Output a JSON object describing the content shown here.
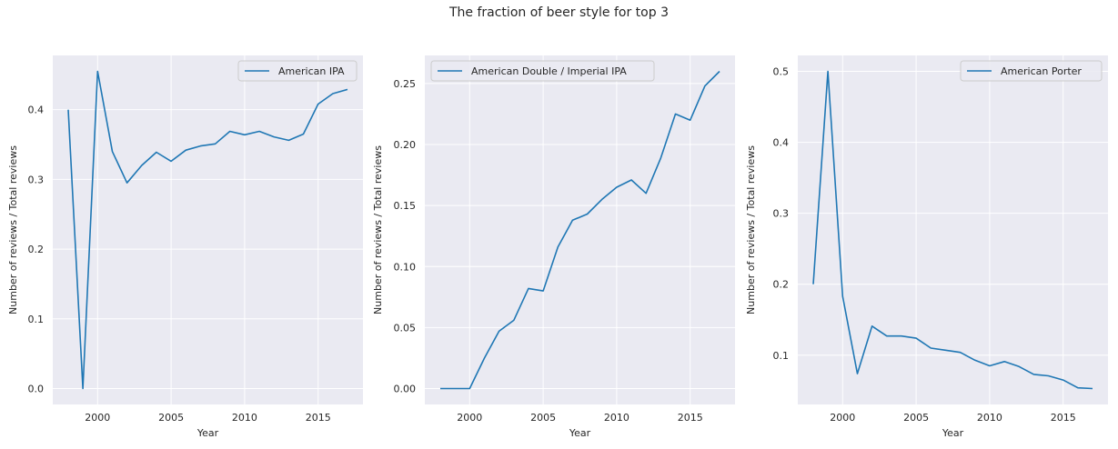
{
  "figure": {
    "title": "The fraction of beer style for top 3"
  },
  "chart_data": [
    {
      "type": "line",
      "x": [
        1998,
        1999,
        2000,
        2001,
        2002,
        2003,
        2004,
        2005,
        2006,
        2007,
        2008,
        2009,
        2010,
        2011,
        2012,
        2013,
        2014,
        2015,
        2016,
        2017
      ],
      "series": [
        {
          "name": "American IPA",
          "color": "#1f77b4",
          "values": [
            0.4,
            0.0,
            0.455,
            0.34,
            0.295,
            0.32,
            0.339,
            0.326,
            0.342,
            0.348,
            0.351,
            0.369,
            0.364,
            0.369,
            0.361,
            0.356,
            0.365,
            0.408,
            0.423,
            0.429
          ]
        }
      ],
      "xlabel": "Year",
      "ylabel": "Number of reviews / Total reviews",
      "xlim": [
        1996.95,
        2018.05
      ],
      "ylim": [
        -0.0228,
        0.4778
      ],
      "xticks": [
        2000,
        2005,
        2010,
        2015
      ],
      "yticks": [
        0.0,
        0.1,
        0.2,
        0.3,
        0.4
      ],
      "ytick_labels": [
        "0.0",
        "0.1",
        "0.2",
        "0.3",
        "0.4"
      ],
      "grid": true,
      "legend": "top-right"
    },
    {
      "type": "line",
      "x": [
        1998,
        1999,
        2000,
        2001,
        2002,
        2003,
        2004,
        2005,
        2006,
        2007,
        2008,
        2009,
        2010,
        2011,
        2012,
        2013,
        2014,
        2015,
        2016,
        2017
      ],
      "series": [
        {
          "name": "American Double / Imperial IPA",
          "color": "#1f77b4",
          "values": [
            0.0,
            0.0,
            0.0,
            0.025,
            0.047,
            0.056,
            0.082,
            0.08,
            0.116,
            0.138,
            0.143,
            0.155,
            0.165,
            0.171,
            0.16,
            0.189,
            0.225,
            0.22,
            0.248,
            0.26
          ]
        }
      ],
      "xlabel": "Year",
      "ylabel": "Number of reviews / Total reviews",
      "xlim": [
        1996.95,
        2018.05
      ],
      "ylim": [
        -0.013,
        0.273
      ],
      "xticks": [
        2000,
        2005,
        2010,
        2015
      ],
      "yticks": [
        0.0,
        0.05,
        0.1,
        0.15,
        0.2,
        0.25
      ],
      "ytick_labels": [
        "0.00",
        "0.05",
        "0.10",
        "0.15",
        "0.20",
        "0.25"
      ],
      "grid": true,
      "legend": "top-left"
    },
    {
      "type": "line",
      "x": [
        1998,
        1999,
        2000,
        2001,
        2002,
        2003,
        2004,
        2005,
        2006,
        2007,
        2008,
        2009,
        2010,
        2011,
        2012,
        2013,
        2014,
        2015,
        2016,
        2017
      ],
      "series": [
        {
          "name": "American Porter",
          "color": "#1f77b4",
          "values": [
            0.2,
            0.5,
            0.183,
            0.074,
            0.141,
            0.127,
            0.127,
            0.124,
            0.11,
            0.107,
            0.104,
            0.093,
            0.085,
            0.091,
            0.084,
            0.073,
            0.071,
            0.065,
            0.054,
            0.053
          ]
        }
      ],
      "xlabel": "Year",
      "ylabel": "Number of reviews / Total reviews",
      "xlim": [
        1996.95,
        2018.05
      ],
      "ylim": [
        0.0306,
        0.5224
      ],
      "xticks": [
        2000,
        2005,
        2010,
        2015
      ],
      "yticks": [
        0.1,
        0.2,
        0.3,
        0.4,
        0.5
      ],
      "ytick_labels": [
        "0.1",
        "0.2",
        "0.3",
        "0.4",
        "0.5"
      ],
      "grid": true,
      "legend": "top-right"
    }
  ]
}
